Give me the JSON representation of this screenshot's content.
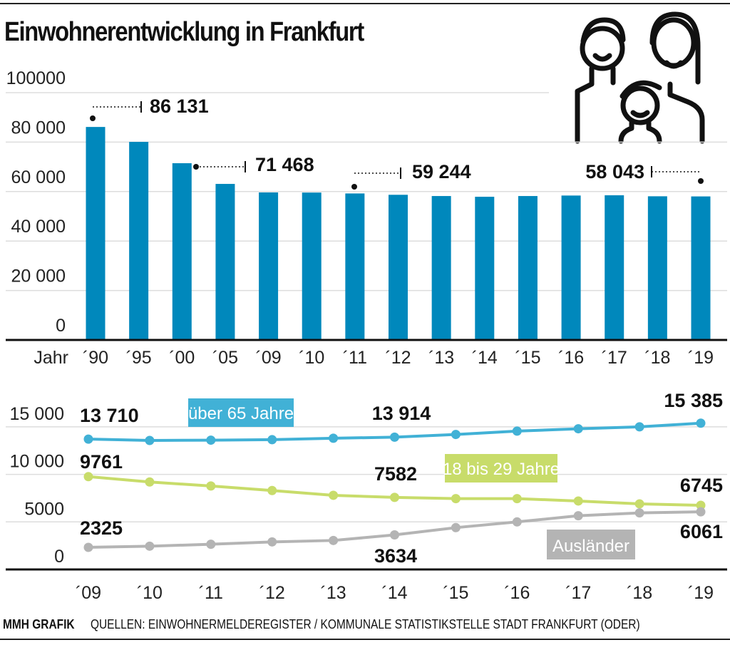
{
  "title": "Einwohnerentwicklung in Frankfurt",
  "footer": {
    "brand": "MMH GRAFIK",
    "source": "QUELLEN: EINWOHNERMELDEREGISTER / KOMMUNALE STATISTIKSTELLE STADT FRANKFURT (ODER)"
  },
  "icon": "family-icon",
  "chart_data": [
    {
      "type": "bar",
      "xlabel": "Jahr",
      "categories": [
        "´90",
        "´95",
        "´00",
        "´05",
        "´09",
        "´10",
        "´11",
        "´12",
        "´13",
        "´14",
        "´15",
        "´16",
        "´17",
        "´18",
        "´19"
      ],
      "values": [
        86131,
        80100,
        71468,
        63100,
        59650,
        59600,
        59244,
        58700,
        58200,
        57900,
        58200,
        58400,
        58500,
        58100,
        58043
      ],
      "ylim": [
        0,
        100000
      ],
      "yticks": [
        "0",
        "20 000",
        "40 000",
        "60 000",
        "80 000",
        "100000"
      ],
      "grid": true,
      "color": "#0088BC",
      "annotations": [
        {
          "category": "´90",
          "label": "86 131"
        },
        {
          "category": "´00",
          "label": "71 468"
        },
        {
          "category": "´11",
          "label": "59 244"
        },
        {
          "category": "´19",
          "label": "58 043"
        }
      ]
    },
    {
      "type": "line",
      "categories": [
        "´09",
        "´10",
        "´11",
        "´12",
        "´13",
        "´14",
        "´15",
        "´16",
        "´17",
        "´18",
        "´19"
      ],
      "ylim": [
        0,
        17000
      ],
      "yticks": [
        "0",
        "5000",
        "10 000",
        "15 000"
      ],
      "grid": true,
      "series": [
        {
          "name": "über 65 Jahre",
          "color": "#41B1D6",
          "values": [
            13710,
            13570,
            13600,
            13650,
            13800,
            13914,
            14200,
            14550,
            14800,
            15000,
            15385
          ],
          "labels": [
            {
              "index": 0,
              "text": "13 710"
            },
            {
              "index": 5,
              "text": "13 914"
            },
            {
              "index": 10,
              "text": "15 385"
            }
          ]
        },
        {
          "name": "18 bis 29 Jahre",
          "color": "#C8DC6A",
          "values": [
            9761,
            9200,
            8780,
            8300,
            7800,
            7582,
            7450,
            7450,
            7200,
            6900,
            6745
          ],
          "labels": [
            {
              "index": 0,
              "text": "9761"
            },
            {
              "index": 5,
              "text": "7582"
            },
            {
              "index": 10,
              "text": "6745"
            }
          ]
        },
        {
          "name": "Ausländer",
          "color": "#B4B4B4",
          "values": [
            2325,
            2450,
            2650,
            2900,
            3050,
            3634,
            4400,
            5000,
            5650,
            5950,
            6061
          ],
          "labels": [
            {
              "index": 0,
              "text": "2325"
            },
            {
              "index": 5,
              "text": "3634"
            },
            {
              "index": 10,
              "text": "6061"
            }
          ]
        }
      ]
    }
  ]
}
